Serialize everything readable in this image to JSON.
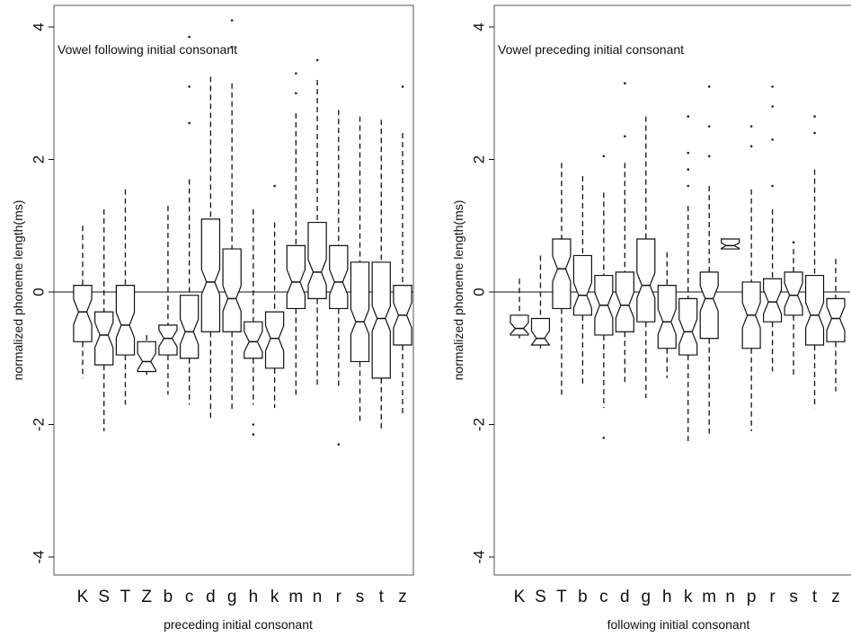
{
  "chart_data": [
    {
      "type": "boxplot",
      "title": "Vowel following initial consonant",
      "xlabel": "preceding initial consonant",
      "ylabel": "normalized phoneme length(ms)",
      "ylim": [
        -4,
        4
      ],
      "yticks": [
        4,
        2,
        0,
        -2,
        -4
      ],
      "grid": false,
      "reference_line_y": 0,
      "categories": [
        "K",
        "S",
        "T",
        "Z",
        "b",
        "c",
        "d",
        "g",
        "h",
        "k",
        "m",
        "n",
        "r",
        "s",
        "t",
        "z"
      ],
      "boxes": [
        {
          "category": "K",
          "min": -1.3,
          "q1": -0.75,
          "median": -0.3,
          "q3": 0.1,
          "max": 1.0,
          "outliers": []
        },
        {
          "category": "S",
          "min": -2.1,
          "q1": -1.1,
          "median": -0.65,
          "q3": -0.3,
          "max": 1.25,
          "outliers": []
        },
        {
          "category": "T",
          "min": -1.7,
          "q1": -0.95,
          "median": -0.5,
          "q3": 0.1,
          "max": 1.55,
          "outliers": []
        },
        {
          "category": "Z",
          "min": -1.25,
          "q1": -1.2,
          "median": -1.05,
          "q3": -0.75,
          "max": -0.65,
          "outliers": []
        },
        {
          "category": "b",
          "min": -1.55,
          "q1": -0.95,
          "median": -0.7,
          "q3": -0.5,
          "max": 1.3,
          "outliers": []
        },
        {
          "category": "c",
          "min": -1.7,
          "q1": -1.0,
          "median": -0.6,
          "q3": -0.05,
          "max": 1.7,
          "outliers": [
            2.55,
            3.1,
            3.85
          ]
        },
        {
          "category": "d",
          "min": -1.9,
          "q1": -0.6,
          "median": 0.15,
          "q3": 1.1,
          "max": 3.25,
          "outliers": []
        },
        {
          "category": "g",
          "min": -1.8,
          "q1": -0.6,
          "median": -0.1,
          "q3": 0.65,
          "max": 3.15,
          "outliers": [
            3.7,
            4.1
          ]
        },
        {
          "category": "h",
          "min": -1.7,
          "q1": -1.0,
          "median": -0.75,
          "q3": -0.45,
          "max": 1.25,
          "outliers": [
            -2.0,
            -2.15
          ]
        },
        {
          "category": "k",
          "min": -1.75,
          "q1": -1.15,
          "median": -0.7,
          "q3": -0.3,
          "max": 1.05,
          "outliers": [
            1.6
          ]
        },
        {
          "category": "m",
          "min": -1.6,
          "q1": -0.25,
          "median": 0.15,
          "q3": 0.7,
          "max": 2.7,
          "outliers": [
            3.0,
            3.3
          ]
        },
        {
          "category": "n",
          "min": -1.4,
          "q1": -0.1,
          "median": 0.3,
          "q3": 1.05,
          "max": 3.2,
          "outliers": [
            3.5
          ]
        },
        {
          "category": "r",
          "min": -1.45,
          "q1": -0.25,
          "median": 0.15,
          "q3": 0.7,
          "max": 2.75,
          "outliers": [
            -2.3
          ]
        },
        {
          "category": "s",
          "min": -2.0,
          "q1": -1.05,
          "median": -0.45,
          "q3": 0.45,
          "max": 2.65,
          "outliers": []
        },
        {
          "category": "t",
          "min": -2.1,
          "q1": -1.3,
          "median": -0.4,
          "q3": 0.45,
          "max": 2.6,
          "outliers": []
        },
        {
          "category": "z",
          "min": -1.85,
          "q1": -0.8,
          "median": -0.35,
          "q3": 0.1,
          "max": 2.4,
          "outliers": [
            3.1
          ]
        }
      ]
    },
    {
      "type": "boxplot",
      "title": "Vowel preceding initial  consonant",
      "xlabel": "following initial consonant",
      "ylabel": "normalized phoneme length(ms)",
      "ylim": [
        -4,
        4
      ],
      "yticks": [
        4,
        2,
        0,
        -2,
        -4
      ],
      "grid": false,
      "reference_line_y": 0,
      "categories": [
        "K",
        "S",
        "T",
        "b",
        "c",
        "d",
        "g",
        "h",
        "k",
        "m",
        "n",
        "p",
        "r",
        "s",
        "t",
        "z"
      ],
      "boxes": [
        {
          "category": "K",
          "min": -0.7,
          "q1": -0.65,
          "median": -0.55,
          "q3": -0.35,
          "max": 0.2,
          "outliers": []
        },
        {
          "category": "S",
          "min": -0.85,
          "q1": -0.8,
          "median": -0.7,
          "q3": -0.4,
          "max": 0.55,
          "outliers": []
        },
        {
          "category": "T",
          "min": -1.55,
          "q1": -0.25,
          "median": 0.35,
          "q3": 0.8,
          "max": 1.95,
          "outliers": []
        },
        {
          "category": "b",
          "min": -1.4,
          "q1": -0.35,
          "median": -0.05,
          "q3": 0.55,
          "max": 1.75,
          "outliers": []
        },
        {
          "category": "c",
          "min": -1.75,
          "q1": -0.65,
          "median": -0.2,
          "q3": 0.25,
          "max": 1.5,
          "outliers": [
            -2.2,
            2.05
          ]
        },
        {
          "category": "d",
          "min": -1.4,
          "q1": -0.6,
          "median": -0.2,
          "q3": 0.3,
          "max": 1.95,
          "outliers": [
            2.35,
            3.15
          ]
        },
        {
          "category": "g",
          "min": -1.6,
          "q1": -0.45,
          "median": 0.1,
          "q3": 0.8,
          "max": 2.65,
          "outliers": []
        },
        {
          "category": "h",
          "min": -1.3,
          "q1": -0.85,
          "median": -0.45,
          "q3": 0.1,
          "max": 0.6,
          "outliers": []
        },
        {
          "category": "k",
          "min": -2.25,
          "q1": -0.95,
          "median": -0.6,
          "q3": -0.1,
          "max": 1.3,
          "outliers": [
            1.6,
            1.85,
            2.1,
            2.65
          ]
        },
        {
          "category": "m",
          "min": -2.15,
          "q1": -0.7,
          "median": -0.1,
          "q3": 0.3,
          "max": 1.6,
          "outliers": [
            2.05,
            2.5,
            3.1
          ]
        },
        {
          "category": "n",
          "min": 0.65,
          "q1": 0.65,
          "median": 0.7,
          "q3": 0.8,
          "max": 0.8,
          "outliers": []
        },
        {
          "category": "p",
          "min": -2.1,
          "q1": -0.85,
          "median": -0.35,
          "q3": 0.15,
          "max": 1.55,
          "outliers": [
            2.2,
            2.5
          ]
        },
        {
          "category": "r",
          "min": -1.2,
          "q1": -0.45,
          "median": -0.15,
          "q3": 0.2,
          "max": 1.25,
          "outliers": [
            1.6,
            2.3,
            2.8,
            3.1
          ]
        },
        {
          "category": "s",
          "min": -1.25,
          "q1": -0.35,
          "median": -0.05,
          "q3": 0.3,
          "max": 0.65,
          "outliers": [
            0.75
          ]
        },
        {
          "category": "t",
          "min": -1.75,
          "q1": -0.8,
          "median": -0.35,
          "q3": 0.25,
          "max": 1.85,
          "outliers": [
            2.4,
            2.65
          ]
        },
        {
          "category": "z",
          "min": -1.5,
          "q1": -0.75,
          "median": -0.4,
          "q3": -0.1,
          "max": 0.5,
          "outliers": []
        }
      ]
    }
  ]
}
